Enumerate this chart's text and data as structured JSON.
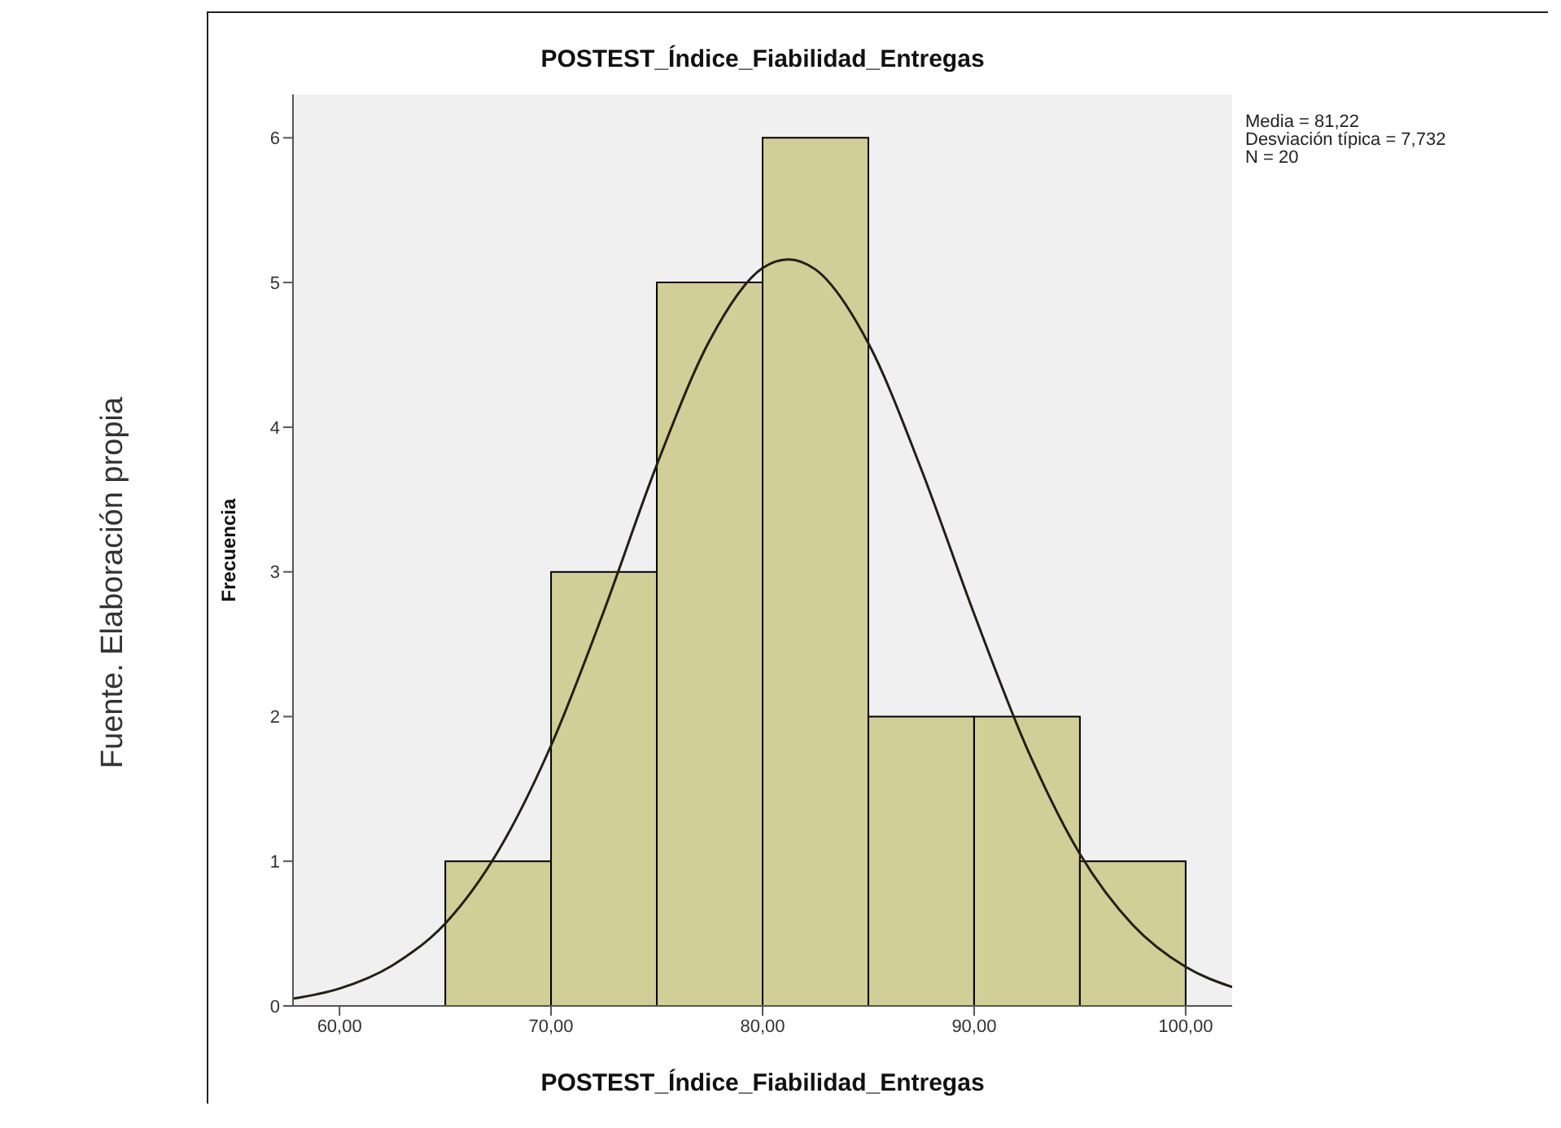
{
  "chart_data": {
    "type": "histogram",
    "title": "POSTEST_Índice_Fiabilidad_Entregas",
    "xlabel": "POSTEST_Índice_Fiabilidad_Entregas",
    "ylabel": "Frecuencia",
    "bins": [
      65,
      70,
      75,
      80,
      85,
      90,
      95,
      100
    ],
    "series": [
      {
        "color": "#d2ce98",
        "values": [
          1,
          3,
          5,
          6,
          2,
          2,
          1
        ]
      },
      {
        "type": "line",
        "color": "#231f14",
        "x": [
          57.8,
          60,
          62.5,
          65,
          67.5,
          70,
          72.5,
          75,
          77.5,
          80,
          81.22,
          82.5,
          85,
          87.5,
          90,
          92.5,
          95,
          97.5,
          100,
          102.2
        ],
        "values": [
          0.05,
          0.12,
          0.28,
          0.57,
          1.07,
          1.8,
          2.73,
          3.74,
          4.6,
          5.1,
          5.16,
          5.09,
          4.58,
          3.71,
          2.71,
          1.78,
          1.05,
          0.56,
          0.27,
          0.13
        ]
      }
    ],
    "xlim": [
      57.8,
      102.2
    ],
    "xticks": [
      {
        "value": 60,
        "label": "60,00"
      },
      {
        "value": 70,
        "label": "70,00"
      },
      {
        "value": 80,
        "label": "80,00"
      },
      {
        "value": 90,
        "label": "90,00"
      },
      {
        "value": 100,
        "label": "100,00"
      }
    ],
    "ylim": [
      0,
      6.3
    ],
    "yticks": [
      0,
      1,
      2,
      3,
      4,
      5,
      6
    ],
    "grid": false,
    "legend": false,
    "marker": "none",
    "line_style": "solid",
    "annotations": [
      "Media = 81,22",
      "Desviación típica = 7,732",
      "N = 20",
      "Fuente. Elaboración propia"
    ]
  }
}
